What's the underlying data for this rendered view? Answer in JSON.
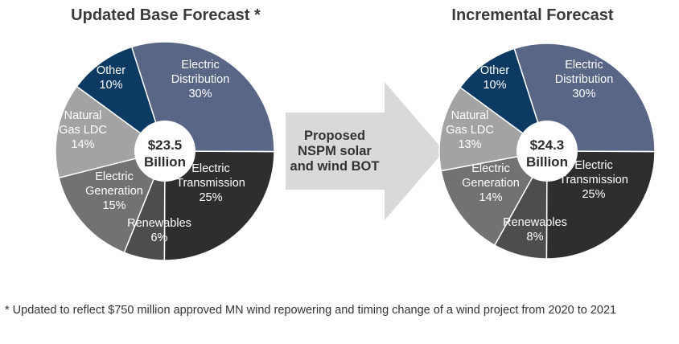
{
  "chart_data": [
    {
      "type": "pie",
      "title": "Updated Base Forecast *",
      "center": {
        "amount": "$23.5",
        "unit": "Billion"
      },
      "slices": [
        {
          "label": [
            "Electric",
            "Distribution"
          ],
          "value": 30,
          "pct": "30%",
          "color": "#5a6686",
          "text": "#ffffff"
        },
        {
          "label": [
            "Electric",
            "Transmission"
          ],
          "value": 25,
          "pct": "25%",
          "color": "#2e2e2e",
          "text": "#ffffff"
        },
        {
          "label": [
            "Renewables"
          ],
          "value": 6,
          "pct": "6%",
          "color": "#4d4d4d",
          "text": "#ffffff"
        },
        {
          "label": [
            "Electric",
            "Generation"
          ],
          "value": 15,
          "pct": "15%",
          "color": "#727272",
          "text": "#ffffff"
        },
        {
          "label": [
            "Natural",
            "Gas LDC"
          ],
          "value": 14,
          "pct": "14%",
          "color": "#a3a3a3",
          "text": "#ffffff"
        },
        {
          "label": [
            "Other"
          ],
          "value": 10,
          "pct": "10%",
          "color": "#0d3a63",
          "text": "#ffffff"
        }
      ]
    },
    {
      "type": "pie",
      "title": "Incremental Forecast",
      "center": {
        "amount": "$24.3",
        "unit": "Billion"
      },
      "slices": [
        {
          "label": [
            "Electric",
            "Distribution"
          ],
          "value": 30,
          "pct": "30%",
          "color": "#5a6686",
          "text": "#ffffff"
        },
        {
          "label": [
            "Electric",
            "Transmission"
          ],
          "value": 25,
          "pct": "25%",
          "color": "#2e2e2e",
          "text": "#ffffff"
        },
        {
          "label": [
            "Renewables"
          ],
          "value": 8,
          "pct": "8%",
          "color": "#4d4d4d",
          "text": "#ffffff"
        },
        {
          "label": [
            "Electric",
            "Generation"
          ],
          "value": 14,
          "pct": "14%",
          "color": "#727272",
          "text": "#ffffff"
        },
        {
          "label": [
            "Natural",
            "Gas LDC"
          ],
          "value": 13,
          "pct": "13%",
          "color": "#a3a3a3",
          "text": "#ffffff"
        },
        {
          "label": [
            "Other"
          ],
          "value": 10,
          "pct": "10%",
          "color": "#0d3a63",
          "text": "#ffffff"
        }
      ]
    }
  ],
  "arrow": {
    "lines": [
      "Proposed",
      "NSPM solar",
      "and wind BOT"
    ],
    "color": "#d9d9d9",
    "text_color": "#333333"
  },
  "footnote": "* Updated to reflect $750 million approved MN wind repowering and timing change of a wind project from 2020 to 2021"
}
